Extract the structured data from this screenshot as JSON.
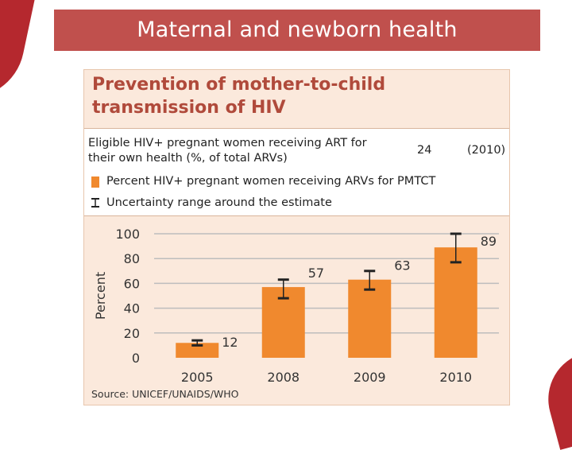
{
  "header": {
    "title": "Maternal and newborn health"
  },
  "panel": {
    "title_line1": "Prevention of mother-to-child",
    "title_line2": "transmission of HIV",
    "info": {
      "label_line1": "Eligible HIV+ pregnant women receiving ART for",
      "label_line2": "their own health (%, of total ARVs)",
      "value": "24",
      "year": "(2010)"
    },
    "legend": {
      "bar_label": "Percent HIV+ pregnant women receiving ARVs for PMTCT",
      "error_label": "Uncertainty range around the estimate"
    },
    "source": "Source: UNICEF/UNAIDS/WHO"
  },
  "colors": {
    "banner": "#c0504d",
    "title_text": "#b04a3b",
    "bar": "#f0892e",
    "panel_bg": "#fbe9dc",
    "error_bar": "#222222",
    "gridline": "#bdbdbd"
  },
  "chart_data": {
    "type": "bar",
    "categories": [
      "2005",
      "2008",
      "2009",
      "2010"
    ],
    "values": [
      12,
      57,
      63,
      89
    ],
    "value_labels": [
      "12",
      "57",
      "63",
      "89"
    ],
    "error_ranges": [
      [
        10,
        14
      ],
      [
        48,
        63
      ],
      [
        55,
        70
      ],
      [
        77,
        100
      ]
    ],
    "ylabel": "Percent",
    "ylim": [
      0,
      100
    ],
    "yticks": [
      0,
      20,
      40,
      60,
      80,
      100
    ],
    "grid": true,
    "legend_position": "top"
  }
}
